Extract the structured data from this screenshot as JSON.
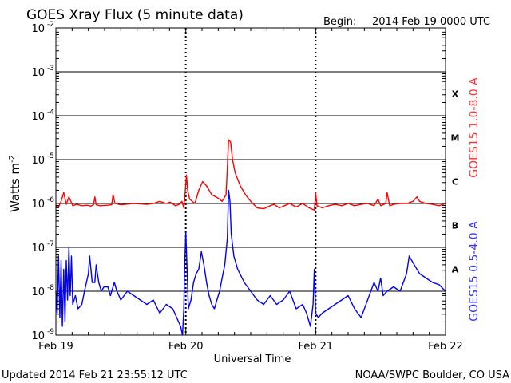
{
  "header": {
    "title": "GOES Xray Flux (5 minute data)",
    "begin_label": "Begin:",
    "begin_value": "2014 Feb 19 0000 UTC"
  },
  "footer": {
    "updated": "Updated 2014 Feb 21 23:55:12 UTC",
    "source": "NOAA/SWPC Boulder, CO USA"
  },
  "colors": {
    "long_channel": "#ff0000",
    "short_channel": "#0000ff",
    "right_label_long": "#ff3333",
    "right_label_short": "#3333ff"
  },
  "chart_data": {
    "type": "line",
    "title": "GOES Xray Flux (5 minute data)",
    "xlabel": "Universal Time",
    "ylabel": "Watts m",
    "ylabel_sup": "-2",
    "yscale": "log",
    "ylim": [
      1e-09,
      0.01
    ],
    "xlim_days": [
      0,
      3
    ],
    "grid": true,
    "x_ticks": [
      {
        "day": 0,
        "label": "Feb 19"
      },
      {
        "day": 1,
        "label": "Feb 20"
      },
      {
        "day": 2,
        "label": "Feb 21"
      },
      {
        "day": 3,
        "label": "Feb 22"
      }
    ],
    "y_ticks": [
      {
        "exp": -2,
        "base": "10",
        "sup": "-2"
      },
      {
        "exp": -3,
        "base": "10",
        "sup": "-3"
      },
      {
        "exp": -4,
        "base": "10",
        "sup": "-4"
      },
      {
        "exp": -5,
        "base": "10",
        "sup": "-5"
      },
      {
        "exp": -6,
        "base": "10",
        "sup": "-6"
      },
      {
        "exp": -7,
        "base": "10",
        "sup": "-7"
      },
      {
        "exp": -8,
        "base": "10",
        "sup": "-8"
      },
      {
        "exp": -9,
        "base": "10",
        "sup": "-9"
      }
    ],
    "flare_classes": [
      {
        "label": "X",
        "log_mid": -3.5
      },
      {
        "label": "M",
        "log_mid": -4.5
      },
      {
        "label": "C",
        "log_mid": -5.5
      },
      {
        "label": "B",
        "log_mid": -6.5
      },
      {
        "label": "A",
        "log_mid": -7.5
      }
    ],
    "series": [
      {
        "name": "GOES15 1.0-8.0 A",
        "color": "#ff0000",
        "points": [
          [
            0.0,
            -6.05
          ],
          [
            0.02,
            -6.08
          ],
          [
            0.04,
            -5.95
          ],
          [
            0.06,
            -5.75
          ],
          [
            0.08,
            -6.02
          ],
          [
            0.1,
            -5.85
          ],
          [
            0.13,
            -6.05
          ],
          [
            0.16,
            -6.02
          ],
          [
            0.2,
            -6.05
          ],
          [
            0.24,
            -6.04
          ],
          [
            0.27,
            -6.06
          ],
          [
            0.29,
            -6.03
          ],
          [
            0.3,
            -5.85
          ],
          [
            0.31,
            -6.03
          ],
          [
            0.34,
            -6.05
          ],
          [
            0.4,
            -6.04
          ],
          [
            0.43,
            -6.03
          ],
          [
            0.44,
            -5.8
          ],
          [
            0.455,
            -6.0
          ],
          [
            0.5,
            -6.03
          ],
          [
            0.6,
            -6.0
          ],
          [
            0.7,
            -6.02
          ],
          [
            0.75,
            -6.0
          ],
          [
            0.8,
            -5.95
          ],
          [
            0.85,
            -6.0
          ],
          [
            0.88,
            -5.97
          ],
          [
            0.92,
            -6.05
          ],
          [
            0.95,
            -6.02
          ],
          [
            0.97,
            -5.95
          ],
          [
            0.985,
            -6.1
          ],
          [
            0.995,
            -5.75
          ],
          [
            1.005,
            -5.35
          ],
          [
            1.015,
            -5.7
          ],
          [
            1.03,
            -5.9
          ],
          [
            1.07,
            -6.0
          ],
          [
            1.1,
            -5.7
          ],
          [
            1.13,
            -5.5
          ],
          [
            1.16,
            -5.6
          ],
          [
            1.2,
            -5.8
          ],
          [
            1.25,
            -5.88
          ],
          [
            1.28,
            -5.95
          ],
          [
            1.31,
            -5.8
          ],
          [
            1.315,
            -5.5
          ],
          [
            1.33,
            -4.55
          ],
          [
            1.345,
            -4.6
          ],
          [
            1.36,
            -5.0
          ],
          [
            1.38,
            -5.3
          ],
          [
            1.42,
            -5.6
          ],
          [
            1.46,
            -5.8
          ],
          [
            1.5,
            -5.95
          ],
          [
            1.55,
            -6.1
          ],
          [
            1.6,
            -6.12
          ],
          [
            1.65,
            -6.05
          ],
          [
            1.68,
            -6.02
          ],
          [
            1.72,
            -6.1
          ],
          [
            1.76,
            -6.05
          ],
          [
            1.8,
            -6.0
          ],
          [
            1.85,
            -6.08
          ],
          [
            1.9,
            -6.0
          ],
          [
            1.95,
            -6.1
          ],
          [
            1.99,
            -6.15
          ],
          [
            2.0,
            -5.75
          ],
          [
            2.01,
            -6.05
          ],
          [
            2.05,
            -6.1
          ],
          [
            2.1,
            -6.05
          ],
          [
            2.15,
            -6.02
          ],
          [
            2.2,
            -6.05
          ],
          [
            2.25,
            -6.0
          ],
          [
            2.3,
            -6.05
          ],
          [
            2.35,
            -6.02
          ],
          [
            2.4,
            -6.0
          ],
          [
            2.45,
            -6.05
          ],
          [
            2.48,
            -5.9
          ],
          [
            2.5,
            -6.05
          ],
          [
            2.54,
            -6.0
          ],
          [
            2.55,
            -5.75
          ],
          [
            2.57,
            -6.05
          ],
          [
            2.6,
            -6.02
          ],
          [
            2.65,
            -6.0
          ],
          [
            2.7,
            -6.0
          ],
          [
            2.75,
            -5.95
          ],
          [
            2.78,
            -5.85
          ],
          [
            2.8,
            -5.95
          ],
          [
            2.85,
            -6.0
          ],
          [
            2.9,
            -6.02
          ],
          [
            2.95,
            -6.05
          ],
          [
            3.0,
            -6.0
          ]
        ]
      },
      {
        "name": "GOES15 0.5-4.0 A",
        "color": "#0000ff",
        "points": [
          [
            0.0,
            -8.0
          ],
          [
            0.01,
            -8.5
          ],
          [
            0.02,
            -7.2
          ],
          [
            0.03,
            -8.6
          ],
          [
            0.04,
            -7.3
          ],
          [
            0.05,
            -8.8
          ],
          [
            0.06,
            -7.5
          ],
          [
            0.07,
            -8.7
          ],
          [
            0.08,
            -7.3
          ],
          [
            0.09,
            -8.2
          ],
          [
            0.1,
            -7.0
          ],
          [
            0.11,
            -8.1
          ],
          [
            0.12,
            -7.2
          ],
          [
            0.13,
            -8.3
          ],
          [
            0.15,
            -8.1
          ],
          [
            0.17,
            -8.4
          ],
          [
            0.2,
            -8.3
          ],
          [
            0.22,
            -8.0
          ],
          [
            0.25,
            -7.6
          ],
          [
            0.26,
            -7.2
          ],
          [
            0.28,
            -7.8
          ],
          [
            0.3,
            -7.8
          ],
          [
            0.31,
            -7.4
          ],
          [
            0.33,
            -7.8
          ],
          [
            0.35,
            -8.0
          ],
          [
            0.37,
            -7.9
          ],
          [
            0.4,
            -7.9
          ],
          [
            0.42,
            -8.1
          ],
          [
            0.45,
            -7.8
          ],
          [
            0.47,
            -8.0
          ],
          [
            0.5,
            -8.2
          ],
          [
            0.55,
            -8.0
          ],
          [
            0.6,
            -8.1
          ],
          [
            0.65,
            -8.2
          ],
          [
            0.7,
            -8.3
          ],
          [
            0.75,
            -8.2
          ],
          [
            0.8,
            -8.5
          ],
          [
            0.85,
            -8.3
          ],
          [
            0.9,
            -8.4
          ],
          [
            0.93,
            -8.6
          ],
          [
            0.96,
            -8.8
          ],
          [
            0.975,
            -9.0
          ],
          [
            0.985,
            -8.4
          ],
          [
            0.99,
            -7.6
          ],
          [
            1.0,
            -6.65
          ],
          [
            1.01,
            -7.5
          ],
          [
            1.02,
            -8.4
          ],
          [
            1.04,
            -8.2
          ],
          [
            1.06,
            -7.8
          ],
          [
            1.08,
            -7.6
          ],
          [
            1.1,
            -7.5
          ],
          [
            1.12,
            -7.1
          ],
          [
            1.14,
            -7.4
          ],
          [
            1.16,
            -7.8
          ],
          [
            1.18,
            -8.1
          ],
          [
            1.2,
            -8.3
          ],
          [
            1.22,
            -8.4
          ],
          [
            1.24,
            -8.2
          ],
          [
            1.26,
            -8.0
          ],
          [
            1.28,
            -7.7
          ],
          [
            1.3,
            -7.4
          ],
          [
            1.32,
            -6.8
          ],
          [
            1.33,
            -5.7
          ],
          [
            1.34,
            -5.95
          ],
          [
            1.35,
            -6.7
          ],
          [
            1.37,
            -7.2
          ],
          [
            1.4,
            -7.5
          ],
          [
            1.45,
            -7.8
          ],
          [
            1.5,
            -8.0
          ],
          [
            1.55,
            -8.2
          ],
          [
            1.6,
            -8.3
          ],
          [
            1.65,
            -8.1
          ],
          [
            1.7,
            -8.3
          ],
          [
            1.75,
            -8.2
          ],
          [
            1.8,
            -8.0
          ],
          [
            1.85,
            -8.4
          ],
          [
            1.9,
            -8.3
          ],
          [
            1.93,
            -8.5
          ],
          [
            1.96,
            -8.8
          ],
          [
            1.98,
            -8.3
          ],
          [
            1.99,
            -7.5
          ],
          [
            2.0,
            -8.5
          ],
          [
            2.02,
            -8.6
          ],
          [
            2.05,
            -8.5
          ],
          [
            2.1,
            -8.4
          ],
          [
            2.15,
            -8.3
          ],
          [
            2.2,
            -8.2
          ],
          [
            2.25,
            -8.1
          ],
          [
            2.3,
            -8.4
          ],
          [
            2.35,
            -8.6
          ],
          [
            2.4,
            -8.2
          ],
          [
            2.45,
            -7.8
          ],
          [
            2.48,
            -8.0
          ],
          [
            2.5,
            -7.7
          ],
          [
            2.52,
            -8.1
          ],
          [
            2.55,
            -8.0
          ],
          [
            2.6,
            -7.9
          ],
          [
            2.65,
            -8.0
          ],
          [
            2.7,
            -7.6
          ],
          [
            2.72,
            -7.2
          ],
          [
            2.75,
            -7.35
          ],
          [
            2.8,
            -7.6
          ],
          [
            2.85,
            -7.7
          ],
          [
            2.9,
            -7.8
          ],
          [
            2.95,
            -7.85
          ],
          [
            3.0,
            -8.0
          ]
        ]
      }
    ]
  }
}
